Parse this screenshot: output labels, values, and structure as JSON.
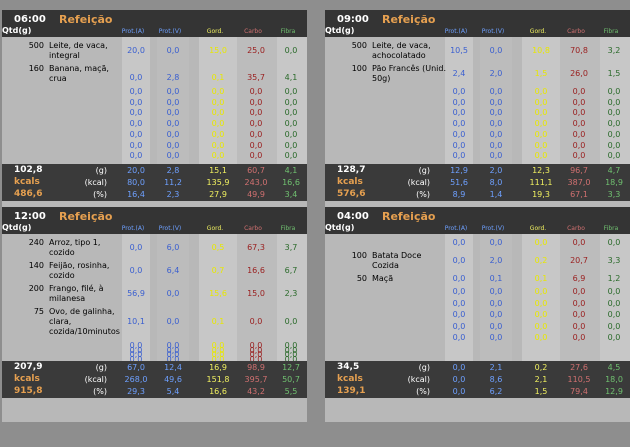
{
  "headers": {
    "qtd": "Qtd(g)",
    "meal": "Refeição",
    "protA": "Prot.(A)",
    "protV": "Prot.(V)",
    "gord": "Gord.",
    "carbo": "Carbo",
    "fibra": "Fibra"
  },
  "labels": {
    "g": "(g)",
    "kcal": "(kcal)",
    "pct": "(%)",
    "kcals": "kcals"
  },
  "panels": [
    {
      "time": "06:00",
      "items": [
        {
          "qty": "500",
          "name": "Leite, de vaca, integral",
          "vals": [
            "20,0",
            "0,0",
            "15,0",
            "25,0",
            "0,0"
          ]
        },
        {
          "qty": "160",
          "name": "Banana, maçã, crua",
          "vals": [
            "0,0",
            "2,8",
            "0,1",
            "35,7",
            "4,1"
          ]
        }
      ],
      "empty_rows": 7,
      "totals": {
        "grams": "102,8",
        "kcals": "kcals",
        "pct_total": "486,6",
        "g": [
          "20,0",
          "2,8",
          "15,1",
          "60,7",
          "4,1"
        ],
        "kcal": [
          "80,0",
          "11,2",
          "135,9",
          "243,0",
          "16,6"
        ],
        "pct": [
          "16,4",
          "2,3",
          "27,9",
          "49,9",
          "3,4"
        ]
      }
    },
    {
      "time": "09:00",
      "items": [
        {
          "qty": "500",
          "name": "Leite, de vaca, achocolatado",
          "vals": [
            "10,5",
            "0,0",
            "10,8",
            "70,8",
            "3,2"
          ]
        },
        {
          "qty": "100",
          "name": "Pão Francês (Unid. 50g)",
          "vals": [
            "2,4",
            "2,0",
            "1,5",
            "26,0",
            "1,5"
          ]
        }
      ],
      "empty_rows": 7,
      "totals": {
        "grams": "128,7",
        "kcals": "kcals",
        "pct_total": "576,6",
        "g": [
          "12,9",
          "2,0",
          "12,3",
          "96,7",
          "4,7"
        ],
        "kcal": [
          "51,6",
          "8,0",
          "111,1",
          "387,0",
          "18,9"
        ],
        "pct": [
          "8,9",
          "1,4",
          "19,3",
          "67,1",
          "3,3"
        ]
      }
    },
    {
      "time": "12:00",
      "items": [
        {
          "qty": "240",
          "name": "Arroz, tipo 1, cozido",
          "vals": [
            "0,0",
            "6,0",
            "0,5",
            "67,3",
            "3,7"
          ]
        },
        {
          "qty": "140",
          "name": "Feijão, rosinha, cozido",
          "vals": [
            "0,0",
            "6,4",
            "0,7",
            "16,6",
            "6,7"
          ]
        },
        {
          "qty": "200",
          "name": "Frango, filé, à milanesa",
          "vals": [
            "56,9",
            "0,0",
            "15,6",
            "15,0",
            "2,3"
          ]
        },
        {
          "qty": "75",
          "name": "Ovo, de galinha, clara, cozida/10minutos",
          "vals": [
            "10,1",
            "0,0",
            "0,1",
            "0,0",
            "0,0"
          ]
        }
      ],
      "empty_rows": 4,
      "totals": {
        "grams": "207,9",
        "kcals": "kcals",
        "pct_total": "915,8",
        "g": [
          "67,0",
          "12,4",
          "16,9",
          "98,9",
          "12,7"
        ],
        "kcal": [
          "268,0",
          "49,6",
          "151,8",
          "395,7",
          "50,7"
        ],
        "pct": [
          "29,3",
          "5,4",
          "16,6",
          "43,2",
          "5,5"
        ]
      }
    },
    {
      "time": "04:00",
      "items": [
        {
          "qty": "",
          "name": "",
          "vals": [
            "0,0",
            "0,0",
            "0,0",
            "0,0",
            "0,0"
          ]
        },
        {
          "qty": "100",
          "name": "Batata Doce Cozida",
          "vals": [
            "0,0",
            "2,0",
            "0,2",
            "20,7",
            "3,3"
          ]
        },
        {
          "qty": "50",
          "name": "Maçã",
          "vals": [
            "0,0",
            "0,1",
            "0,1",
            "6,9",
            "1,2"
          ]
        }
      ],
      "empty_rows": 5,
      "totals": {
        "grams": "34,5",
        "kcals": "kcals",
        "pct_total": "139,1",
        "g": [
          "0,0",
          "2,1",
          "0,2",
          "27,6",
          "4,5"
        ],
        "kcal": [
          "0,0",
          "8,6",
          "2,1",
          "110,5",
          "18,0"
        ],
        "pct": [
          "0,0",
          "6,2",
          "1,5",
          "79,4",
          "12,9"
        ]
      }
    }
  ],
  "colors": {
    "protA": "#3a5fd0",
    "protV": "#3a5fd0",
    "gord": "#e8e800",
    "carbo": "#9a2020",
    "fibra": "#2a6a2a"
  }
}
